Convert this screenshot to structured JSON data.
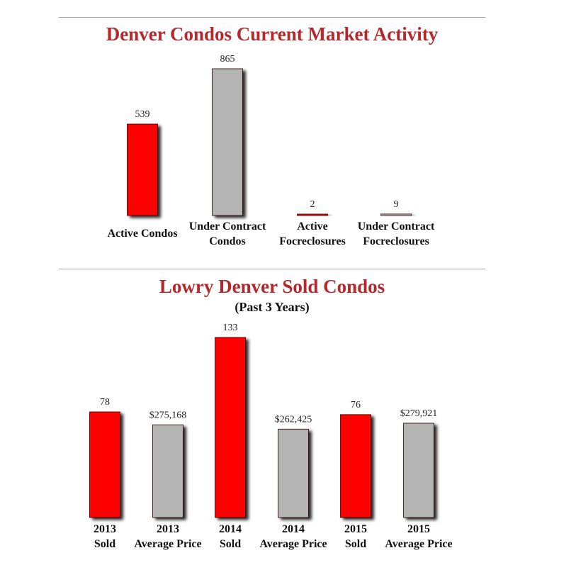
{
  "chart_data": [
    {
      "type": "bar",
      "title": "Denver Condos Current Market Activity",
      "categories": [
        "Active Condos",
        "Under Contract Condos",
        "Active Focreclosures",
        "Under Contract Focreclosures"
      ],
      "category_lines": [
        [
          "Active Condos"
        ],
        [
          "Under Contract",
          "Condos"
        ],
        [
          "Active",
          "Focreclosures"
        ],
        [
          "Under Contract",
          "Focreclosures"
        ]
      ],
      "values": [
        539,
        865,
        2,
        9
      ],
      "value_labels": [
        "539",
        "865",
        "2",
        "9"
      ],
      "colors": [
        "#ff0000",
        "#b4b4b4",
        "#ff0000",
        "#b4b4b4"
      ],
      "xlabel": "",
      "ylabel": "",
      "ylim": [
        0,
        865
      ],
      "grid": false
    },
    {
      "type": "bar",
      "title": "Lowry Denver Sold Condos",
      "subtitle": "(Past 3 Years)",
      "categories": [
        "2013 Sold",
        "2013 Average Price",
        "2014 Sold",
        "2014 Average Price",
        "2015 Sold",
        "2015 Average Price"
      ],
      "category_lines": [
        [
          "2013",
          "Sold"
        ],
        [
          "2013",
          "Average Price"
        ],
        [
          "2014",
          "Sold"
        ],
        [
          "2014",
          "Average Price"
        ],
        [
          "2015",
          "Sold"
        ],
        [
          "2015",
          "Average Price"
        ]
      ],
      "values": [
        78,
        275168,
        133,
        262425,
        76,
        279921
      ],
      "value_labels": [
        "78",
        "$275,168",
        "133",
        "$262,425",
        "76",
        "$279,921"
      ],
      "colors": [
        "#ff0000",
        "#b4b4b4",
        "#ff0000",
        "#b4b4b4",
        "#ff0000",
        "#b4b4b4"
      ],
      "xlabel": "",
      "ylabel": "",
      "grid": false
    }
  ]
}
